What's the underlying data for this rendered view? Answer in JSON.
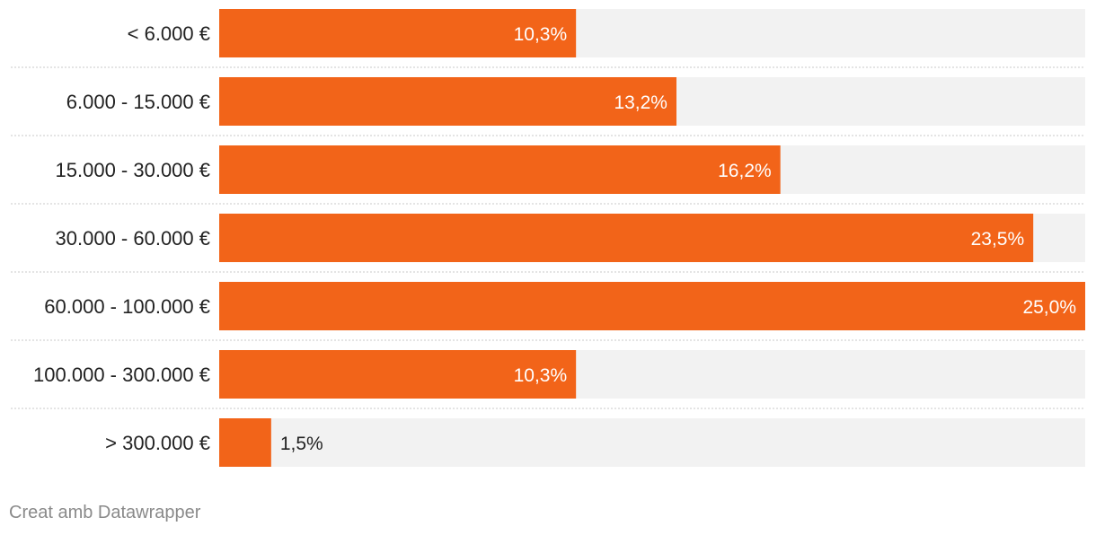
{
  "chart_data": {
    "type": "bar",
    "orientation": "horizontal",
    "categories": [
      "< 6.000 €",
      "6.000 - 15.000 €",
      "15.000 - 30.000 €",
      "30.000 - 60.000 €",
      "60.000 - 100.000 €",
      "100.000 - 300.000 €",
      "> 300.000 €"
    ],
    "values": [
      10.3,
      13.2,
      16.2,
      23.5,
      25.0,
      10.3,
      1.5
    ],
    "value_labels": [
      "10,3%",
      "13,2%",
      "16,2%",
      "23,5%",
      "25,0%",
      "10,3%",
      "1,5%"
    ],
    "xlim": [
      0,
      25
    ],
    "title": "",
    "xlabel": "",
    "ylabel": "",
    "grid": false,
    "colors": {
      "bar": "#f26419",
      "track": "#f2f2f2",
      "separator": "#c8c8c8",
      "label_inside": "#ffffff",
      "label_outside": "#222222"
    }
  },
  "footer": {
    "credit": "Creat amb Datawrapper"
  }
}
